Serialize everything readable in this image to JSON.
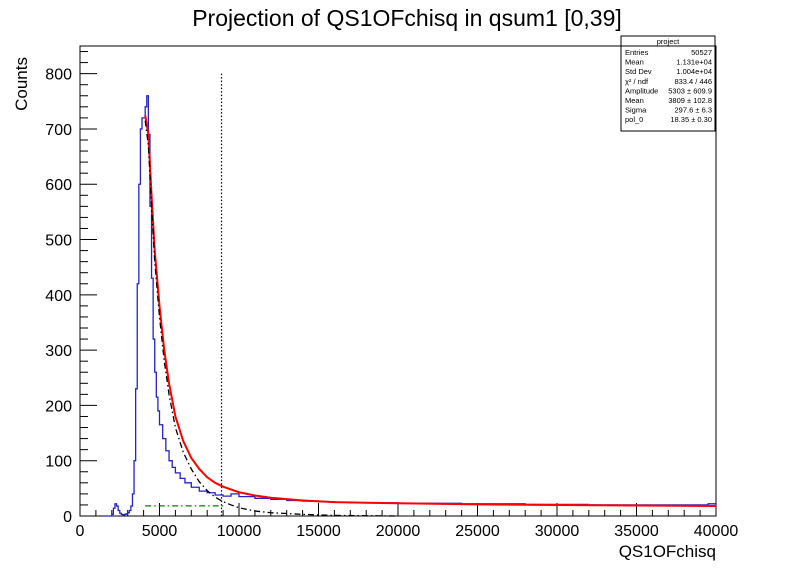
{
  "chart_data": {
    "type": "line",
    "title": "Projection of QS1OFchisq in qsum1 [0,39]",
    "xlabel": "QS1OFchisq",
    "ylabel": "Counts",
    "xlim": [
      0,
      40000
    ],
    "ylim": [
      0,
      850
    ],
    "x_ticks": [
      "0",
      "5000",
      "10000",
      "15000",
      "20000",
      "25000",
      "30000",
      "35000",
      "40000"
    ],
    "y_ticks": [
      "0",
      "100",
      "200",
      "300",
      "400",
      "500",
      "600",
      "700",
      "800"
    ],
    "grid": false,
    "cut_line_x": 8900,
    "series": [
      {
        "name": "",
        "color": "#2323c8",
        "style": "step",
        "x": [
          1500,
          1800,
          2000,
          2100,
          2200,
          2300,
          2400,
          2500,
          2600,
          2700,
          2800,
          2900,
          3000,
          3100,
          3200,
          3300,
          3400,
          3500,
          3600,
          3700,
          3800,
          3900,
          4000,
          4100,
          4200,
          4300,
          4400,
          4500,
          4600,
          4700,
          4800,
          4900,
          5000,
          5200,
          5400,
          5600,
          5800,
          6000,
          6300,
          6600,
          7000,
          7500,
          8000,
          8500,
          9000,
          9500,
          10000,
          11000,
          12000,
          13000,
          14000,
          15000,
          16000,
          17000,
          18000,
          20000,
          22000,
          24000,
          26000,
          28000,
          30000,
          32000,
          34000,
          36000,
          38000,
          39500,
          40000
        ],
        "y": [
          0,
          0,
          3,
          14,
          22,
          18,
          10,
          5,
          3,
          2,
          3,
          4,
          6,
          10,
          18,
          40,
          100,
          230,
          420,
          600,
          700,
          720,
          720,
          740,
          760,
          690,
          560,
          430,
          320,
          260,
          215,
          190,
          165,
          140,
          118,
          100,
          88,
          78,
          68,
          60,
          52,
          45,
          42,
          38,
          36,
          40,
          35,
          32,
          30,
          28,
          27,
          26,
          25,
          24,
          24,
          23,
          23,
          22,
          22,
          21,
          21,
          20,
          20,
          20,
          20,
          22,
          20
        ]
      },
      {
        "name": "",
        "color": "#ff0000",
        "style": "line",
        "x": [
          4100,
          4300,
          4500,
          4700,
          5000,
          5300,
          5600,
          6000,
          6500,
          7000,
          7500,
          8000,
          8500,
          9000,
          10000,
          11000,
          12000,
          14000,
          16000,
          18000,
          20000,
          25000,
          30000,
          35000,
          40000
        ],
        "y": [
          725,
          690,
          580,
          480,
          380,
          300,
          240,
          180,
          135,
          105,
          85,
          70,
          60,
          53,
          43,
          37,
          33,
          28,
          25,
          24,
          23,
          21,
          20,
          19,
          18
        ]
      },
      {
        "name": "",
        "color": "#000000",
        "style": "dash-dot",
        "x": [
          4100,
          4300,
          4500,
          4700,
          5000,
          5300,
          5600,
          6000,
          6500,
          7000,
          7500,
          8000,
          8500,
          9000,
          9500,
          10000,
          11000,
          12000,
          14000,
          16000,
          18000,
          20000
        ],
        "y": [
          715,
          670,
          560,
          460,
          360,
          280,
          220,
          160,
          115,
          85,
          62,
          46,
          34,
          26,
          20,
          15,
          9,
          6,
          3,
          1,
          0.5,
          0
        ]
      },
      {
        "name": "",
        "color": "#008000",
        "style": "dash-dot",
        "x": [
          4100,
          9000
        ],
        "y": [
          18.35,
          18.35
        ]
      }
    ]
  },
  "stats_box": {
    "title": "project",
    "rows": [
      {
        "label": "Entries",
        "value": "50527"
      },
      {
        "label": "Mean",
        "value": "1.131e+04"
      },
      {
        "label": "Std Dev",
        "value": "1.004e+04"
      },
      {
        "label": "χ² / ndf",
        "value": "833.4 / 446"
      },
      {
        "label": "Amplitude",
        "value": "5303 ± 609.9"
      },
      {
        "label": "Mean",
        "value": "3809 ± 102.8"
      },
      {
        "label": "Sigma",
        "value": "297.6 ± 6.3"
      },
      {
        "label": "pol_0",
        "value": "18.35 ± 0.30"
      }
    ]
  }
}
